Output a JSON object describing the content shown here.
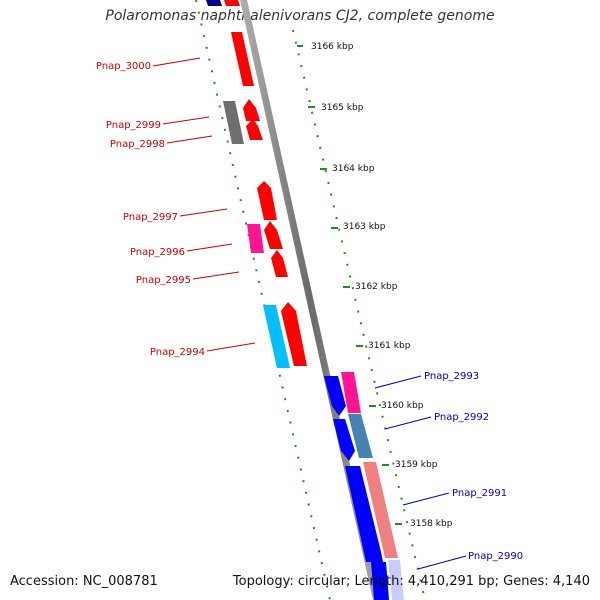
{
  "title": "Polaromonas naphthalenivorans CJ2, complete genome",
  "accession": "Accession: NC_008781",
  "summary": "Topology: circular; Length: 4,410,291 bp; Genes: 4,140",
  "ticks": [
    "3166 kbp",
    "3165 kbp",
    "3164 kbp",
    "3163 kbp",
    "3162 kbp",
    "3161 kbp",
    "3160 kbp",
    "3159 kbp",
    "3158 kbp"
  ],
  "left_genes": [
    "Pnap_3000",
    "Pnap_2999",
    "Pnap_2998",
    "Pnap_2997",
    "Pnap_2996",
    "Pnap_2995",
    "Pnap_2994"
  ],
  "right_genes": [
    "Pnap_2993",
    "Pnap_2992",
    "Pnap_2991",
    "Pnap_2990"
  ],
  "colors": {
    "label_left": "#cc0000",
    "label_right": "#0000cc",
    "red": "#ff0000",
    "blue": "#0000ff",
    "grey": "#6e6e6e",
    "magenta": "#ff1493",
    "cyan": "#00bfff",
    "steel": "#4682b4",
    "salmon": "#f08080",
    "dots": "#228b22",
    "backbone": "#808080"
  }
}
